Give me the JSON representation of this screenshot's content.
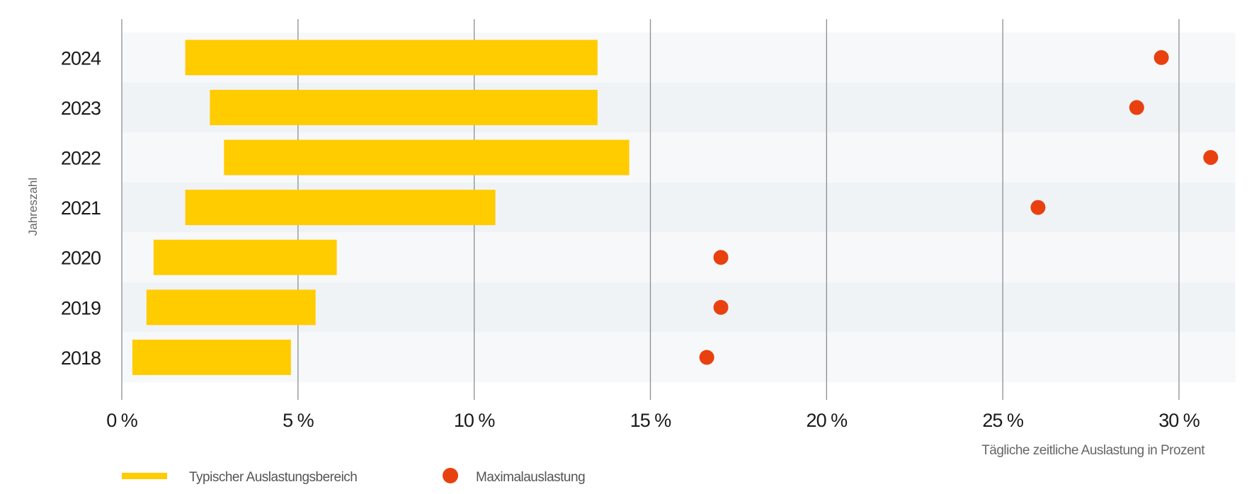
{
  "chart_data": {
    "type": "bar",
    "subtype": "floating-range-bar-with-dots",
    "title": "",
    "xlabel": "Tägliche zeitliche Auslastung in Prozent",
    "ylabel": "Jahreszahl",
    "xlim": [
      0,
      31.6
    ],
    "x_ticks": [
      0,
      5,
      10,
      15,
      20,
      25,
      30
    ],
    "x_tick_labels": [
      "0 %",
      "5 %",
      "10 %",
      "15 %",
      "20 %",
      "25 %",
      "30 %"
    ],
    "grid": "vertical",
    "categories": [
      "2024",
      "2023",
      "2022",
      "2021",
      "2020",
      "2019",
      "2018"
    ],
    "series": [
      {
        "name": "Typischer Auslastungsbereich",
        "kind": "range",
        "color": "#FFCC00",
        "values": [
          [
            1.8,
            13.5
          ],
          [
            2.5,
            13.5
          ],
          [
            2.9,
            14.4
          ],
          [
            1.8,
            10.6
          ],
          [
            0.9,
            6.1
          ],
          [
            0.7,
            5.5
          ],
          [
            0.3,
            4.8
          ]
        ]
      },
      {
        "name": "Maximalauslastung",
        "kind": "dot",
        "color": "#E8410F",
        "values": [
          29.5,
          28.8,
          30.9,
          26.0,
          17.0,
          17.0,
          16.6
        ]
      }
    ],
    "legend_position": "bottom-left",
    "band_colors": [
      "#F7F8FA",
      "#F0F3F6"
    ]
  }
}
